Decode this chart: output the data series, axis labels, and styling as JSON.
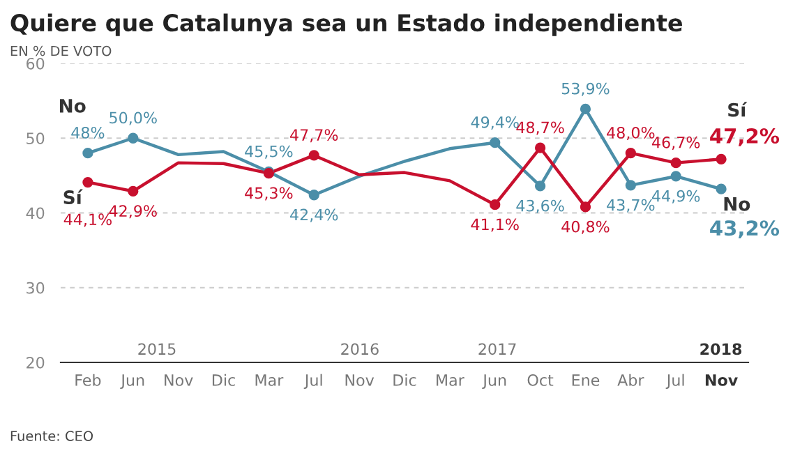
{
  "chart_data": {
    "type": "line",
    "title": "Quiere que Catalunya sea un Estado independiente",
    "subtitle": "EN % DE VOTO",
    "categories": [
      "Feb",
      "Jun",
      "Nov",
      "Dic",
      "Mar",
      "Jul",
      "Nov",
      "Dic",
      "Mar",
      "Jun",
      "Oct",
      "Ene",
      "Abr",
      "Jul",
      "Nov"
    ],
    "series": [
      {
        "name": "No",
        "color": "#4b8ea8",
        "values": [
          48,
          50.0,
          47.8,
          48.2,
          45.5,
          42.4,
          44.9,
          46.9,
          48.6,
          49.4,
          43.6,
          53.9,
          43.7,
          44.9,
          43.2
        ],
        "value_labels": [
          "48%",
          "50,0%",
          null,
          null,
          "45,5%",
          "42,4%",
          null,
          null,
          null,
          "49,4%",
          "43,6%",
          "53,9%",
          "43,7%",
          "44,9%",
          "43,2%"
        ]
      },
      {
        "name": "Sí",
        "color": "#c8102e",
        "values": [
          44.1,
          42.9,
          46.7,
          46.6,
          45.3,
          47.7,
          45.1,
          45.4,
          44.3,
          41.1,
          48.7,
          40.8,
          48.0,
          46.7,
          47.2
        ],
        "value_labels": [
          "44,1%",
          "42,9%",
          null,
          null,
          "45,3%",
          "47,7%",
          null,
          null,
          null,
          "41,1%",
          "48,7%",
          "40,8%",
          "48,0%",
          "46,7%",
          "47,2%"
        ]
      }
    ],
    "ylim": [
      20,
      60
    ],
    "yticks": [
      20,
      30,
      40,
      50,
      60
    ],
    "grid": "y",
    "marker": "circle",
    "line_style": "solid",
    "annotations": [
      "2015",
      "2016",
      "2017",
      "2018",
      "Fuente: CEO"
    ]
  }
}
